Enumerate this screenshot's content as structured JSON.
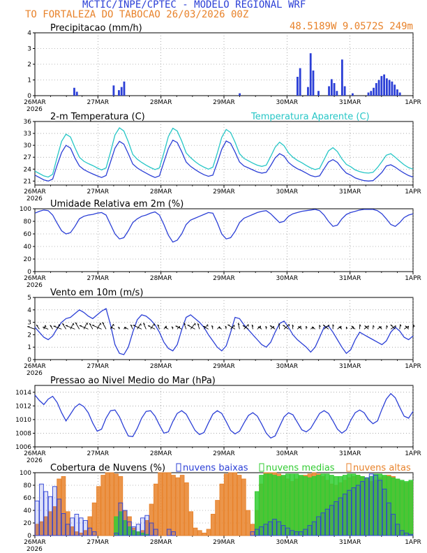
{
  "header": {
    "line1": "MCTIC/INPE/CPTEC - MODELO REGIONAL WRF",
    "line2": "TO FORTALEZA DO TABOCAO    26/03/2026 00Z",
    "coords": "48.5189W 9.0572S 249m"
  },
  "colors": {
    "blue": "#2b3fd6",
    "orange": "#e8822a",
    "cyan": "#26c6c6",
    "green": "#33cc33",
    "black": "#000000"
  },
  "time_axis": {
    "hours_total": 144,
    "step_hours": 3,
    "day_labels": [
      "26MAR",
      "27MAR",
      "28MAR",
      "29MAR",
      "30MAR",
      "31MAR",
      "1APR"
    ],
    "year_label": "2026"
  },
  "chart_data": [
    {
      "type": "bar",
      "title": "Precipitacao (mm/h)",
      "ylim": [
        0,
        4
      ],
      "yticks": [
        0,
        1,
        2,
        3,
        4
      ],
      "x_hours": [
        15,
        16,
        30,
        32,
        33,
        34,
        78,
        100,
        101,
        104,
        105,
        106,
        108,
        112,
        113,
        114,
        115,
        117,
        118,
        121,
        127,
        128,
        129,
        130,
        131,
        132,
        133,
        134,
        135,
        136,
        137,
        138,
        139
      ],
      "values": [
        0.5,
        0.25,
        0.65,
        0.35,
        0.55,
        0.9,
        0.15,
        1.2,
        1.75,
        0.55,
        2.7,
        1.6,
        0.3,
        0.6,
        1.05,
        0.8,
        0.3,
        2.3,
        0.6,
        0.15,
        0.2,
        0.3,
        0.5,
        0.8,
        1.0,
        1.25,
        1.35,
        1.1,
        1.0,
        0.9,
        0.7,
        0.4,
        0.2
      ]
    },
    {
      "type": "line",
      "title": "2-m Temperatura (C)",
      "ylim": [
        20,
        36
      ],
      "yticks": [
        21,
        24,
        27,
        30,
        33,
        36
      ],
      "series": [
        {
          "name": "2-m Temperatura (C)",
          "color_key": "blue",
          "values": [
            22.5,
            21.9,
            21.3,
            21.0,
            21.5,
            25.0,
            28.2,
            30.0,
            29.3,
            26.8,
            24.8,
            23.9,
            23.3,
            22.8,
            22.3,
            21.9,
            22.4,
            25.8,
            29.3,
            31.0,
            30.3,
            27.9,
            25.3,
            24.3,
            23.6,
            23.0,
            22.4,
            21.9,
            22.3,
            25.8,
            29.2,
            31.3,
            30.7,
            28.4,
            25.8,
            24.7,
            23.9,
            23.2,
            22.6,
            22.2,
            22.5,
            25.6,
            29.0,
            31.1,
            30.5,
            28.3,
            25.8,
            24.8,
            24.3,
            23.8,
            23.3,
            23.0,
            23.2,
            24.9,
            26.8,
            27.9,
            27.3,
            25.7,
            24.8,
            24.1,
            23.6,
            23.0,
            22.4,
            22.1,
            22.3,
            24.1,
            25.8,
            26.4,
            25.7,
            24.2,
            23.0,
            22.5,
            21.8,
            21.4,
            21.1,
            21.0,
            21.1,
            22.1,
            23.2,
            24.8,
            25.1,
            24.5,
            23.7,
            23.0,
            22.4,
            22.0
          ]
        },
        {
          "name": "Temperatura Aparente (C)",
          "color_key": "cyan",
          "values": [
            23.5,
            22.9,
            22.3,
            22.0,
            22.7,
            27.0,
            31.0,
            32.8,
            32.1,
            29.4,
            27.0,
            26.0,
            25.4,
            24.9,
            24.3,
            23.8,
            24.3,
            28.3,
            32.6,
            34.4,
            33.6,
            30.9,
            27.7,
            26.5,
            25.7,
            25.0,
            24.4,
            23.9,
            24.3,
            28.1,
            32.2,
            34.3,
            33.6,
            31.1,
            28.1,
            26.9,
            25.9,
            25.1,
            24.5,
            24.0,
            24.5,
            28.0,
            32.0,
            34.0,
            33.2,
            30.8,
            27.9,
            26.7,
            26.1,
            25.5,
            25.0,
            24.7,
            25.0,
            27.2,
            29.5,
            30.8,
            29.9,
            28.1,
            27.0,
            26.2,
            25.6,
            24.9,
            24.3,
            23.9,
            24.2,
            26.4,
            28.6,
            29.4,
            28.4,
            26.6,
            25.2,
            24.6,
            23.8,
            23.4,
            23.1,
            23.0,
            23.2,
            24.4,
            25.9,
            27.5,
            27.9,
            27.0,
            26.0,
            25.1,
            24.4,
            24.0
          ]
        }
      ]
    },
    {
      "type": "line",
      "title": "Umidade Relativa em 2m (%)",
      "ylim": [
        0,
        100
      ],
      "yticks": [
        0,
        20,
        40,
        60,
        80,
        100
      ],
      "series": [
        {
          "name": "Umidade Relativa em 2m (%)",
          "color_key": "blue",
          "values": [
            93,
            96,
            98,
            97,
            90,
            77,
            65,
            60,
            62,
            72,
            84,
            88,
            90,
            91,
            93,
            94,
            90,
            75,
            60,
            52,
            54,
            65,
            78,
            84,
            88,
            90,
            93,
            95,
            90,
            75,
            58,
            47,
            50,
            60,
            75,
            82,
            85,
            88,
            91,
            94,
            93,
            78,
            60,
            52,
            54,
            64,
            78,
            85,
            88,
            91,
            94,
            96,
            97,
            92,
            85,
            78,
            80,
            88,
            92,
            94,
            96,
            97,
            98,
            99,
            97,
            90,
            80,
            72,
            74,
            84,
            91,
            94,
            96,
            98,
            99,
            99,
            99,
            97,
            92,
            84,
            75,
            72,
            78,
            86,
            90,
            92
          ]
        }
      ]
    },
    {
      "type": "line",
      "title": "Vento em 10m (m/s)",
      "ylim": [
        0,
        5
      ],
      "yticks": [
        0,
        1,
        2,
        3,
        4,
        5
      ],
      "series": [
        {
          "name": "Vento em 10m (m/s)",
          "color_key": "blue",
          "values": [
            2.6,
            2.2,
            1.8,
            1.6,
            1.9,
            2.5,
            3.0,
            3.3,
            3.4,
            3.7,
            4.0,
            3.8,
            3.5,
            3.3,
            3.6,
            3.9,
            4.1,
            2.8,
            1.2,
            0.5,
            0.4,
            1.0,
            2.2,
            3.2,
            3.6,
            3.5,
            3.2,
            2.8,
            2.2,
            1.4,
            0.9,
            0.7,
            1.2,
            2.4,
            3.4,
            3.6,
            3.3,
            3.0,
            2.6,
            2.0,
            1.5,
            1.0,
            0.7,
            1.1,
            2.2,
            3.4,
            3.3,
            2.8,
            2.4,
            2.0,
            1.6,
            1.2,
            1.0,
            1.4,
            2.2,
            2.9,
            3.1,
            2.6,
            2.0,
            1.6,
            1.3,
            1.0,
            0.6,
            1.0,
            1.8,
            2.6,
            2.7,
            2.2,
            1.6,
            1.0,
            0.5,
            0.8,
            1.6,
            2.2,
            2.0,
            1.8,
            1.6,
            1.4,
            1.2,
            1.5,
            2.2,
            2.6,
            2.3,
            1.8,
            1.6,
            1.9
          ]
        }
      ]
    },
    {
      "type": "line",
      "title": "Pressao ao Nivel Medio do Mar (hPa)",
      "ylim": [
        1006,
        1015
      ],
      "yticks": [
        1006,
        1008,
        1010,
        1012,
        1014
      ],
      "series": [
        {
          "name": "Pressao ao Nivel Medio do Mar (hPa)",
          "color_key": "blue",
          "values": [
            1013.6,
            1012.8,
            1012.2,
            1013.0,
            1013.4,
            1012.5,
            1011.0,
            1009.8,
            1010.8,
            1011.8,
            1012.3,
            1011.9,
            1011.0,
            1009.5,
            1008.3,
            1008.6,
            1010.2,
            1011.3,
            1011.4,
            1010.4,
            1008.9,
            1007.6,
            1007.5,
            1008.7,
            1010.2,
            1011.2,
            1011.3,
            1010.5,
            1009.2,
            1008.0,
            1008.2,
            1009.7,
            1010.9,
            1011.3,
            1010.8,
            1009.6,
            1008.4,
            1007.8,
            1008.1,
            1009.5,
            1010.8,
            1011.3,
            1010.9,
            1009.7,
            1008.4,
            1007.9,
            1008.3,
            1009.5,
            1010.6,
            1011.0,
            1010.5,
            1009.3,
            1008.0,
            1007.3,
            1007.6,
            1009.0,
            1010.4,
            1011.0,
            1010.7,
            1009.6,
            1008.5,
            1008.2,
            1008.7,
            1009.8,
            1010.9,
            1011.3,
            1010.9,
            1009.8,
            1008.6,
            1008.0,
            1008.5,
            1009.9,
            1011.0,
            1011.4,
            1011.0,
            1010.0,
            1009.4,
            1009.8,
            1011.5,
            1013.0,
            1013.8,
            1013.2,
            1011.8,
            1010.5,
            1010.2,
            1011.2
          ]
        }
      ]
    },
    {
      "type": "bar",
      "title": "Cobertura de Nuvens (%)",
      "ylim": [
        0,
        100
      ],
      "yticks": [
        0,
        20,
        40,
        60,
        80,
        100
      ],
      "legend": [
        "nuvens baixas",
        "nuvens medias",
        "nuvens altas"
      ],
      "series": [
        {
          "name": "nuvens baixas",
          "color_key": "blue",
          "values": [
            55,
            82,
            70,
            62,
            78,
            58,
            35,
            18,
            28,
            34,
            28,
            24,
            12,
            6,
            0,
            0,
            0,
            0,
            4,
            52,
            40,
            22,
            14,
            18,
            28,
            32,
            20,
            10,
            0,
            0,
            10,
            6,
            0,
            0,
            0,
            0,
            0,
            0,
            0,
            0,
            0,
            0,
            0,
            0,
            0,
            0,
            0,
            0,
            0,
            6,
            10,
            14,
            18,
            22,
            26,
            22,
            16,
            12,
            8,
            6,
            6,
            10,
            16,
            22,
            30,
            36,
            42,
            48,
            54,
            60,
            66,
            72,
            76,
            80,
            86,
            92,
            98,
            96,
            88,
            74,
            52,
            34,
            18,
            8,
            4,
            2
          ]
        },
        {
          "name": "nuvens medias",
          "color_key": "green",
          "values": [
            0,
            0,
            0,
            0,
            0,
            0,
            0,
            0,
            0,
            0,
            0,
            0,
            0,
            0,
            0,
            0,
            0,
            0,
            30,
            38,
            24,
            14,
            8,
            6,
            4,
            2,
            0,
            0,
            0,
            0,
            0,
            0,
            0,
            0,
            0,
            0,
            0,
            0,
            0,
            0,
            0,
            0,
            0,
            0,
            0,
            0,
            0,
            0,
            0,
            0,
            70,
            96,
            98,
            98,
            96,
            94,
            96,
            98,
            98,
            98,
            96,
            94,
            92,
            94,
            96,
            98,
            98,
            96,
            94,
            94,
            96,
            98,
            98,
            96,
            94,
            92,
            94,
            98,
            98,
            96,
            94,
            92,
            90,
            88,
            86,
            88
          ]
        },
        {
          "name": "nuvens altas",
          "color_key": "orange",
          "values": [
            18,
            22,
            30,
            38,
            46,
            90,
            94,
            38,
            14,
            6,
            4,
            8,
            30,
            52,
            78,
            96,
            100,
            100,
            98,
            94,
            40,
            30,
            12,
            6,
            8,
            24,
            50,
            82,
            100,
            100,
            100,
            96,
            92,
            96,
            84,
            38,
            12,
            8,
            4,
            10,
            34,
            56,
            82,
            98,
            100,
            100,
            96,
            90,
            40,
            18,
            40,
            82,
            100,
            100,
            100,
            98,
            94,
            90,
            86,
            90,
            94,
            96,
            98,
            100,
            98,
            94,
            88,
            82,
            80,
            84,
            88,
            92,
            94,
            96,
            94,
            90,
            86,
            88,
            92,
            94,
            96,
            94,
            90,
            86,
            84,
            86
          ]
        }
      ]
    }
  ]
}
